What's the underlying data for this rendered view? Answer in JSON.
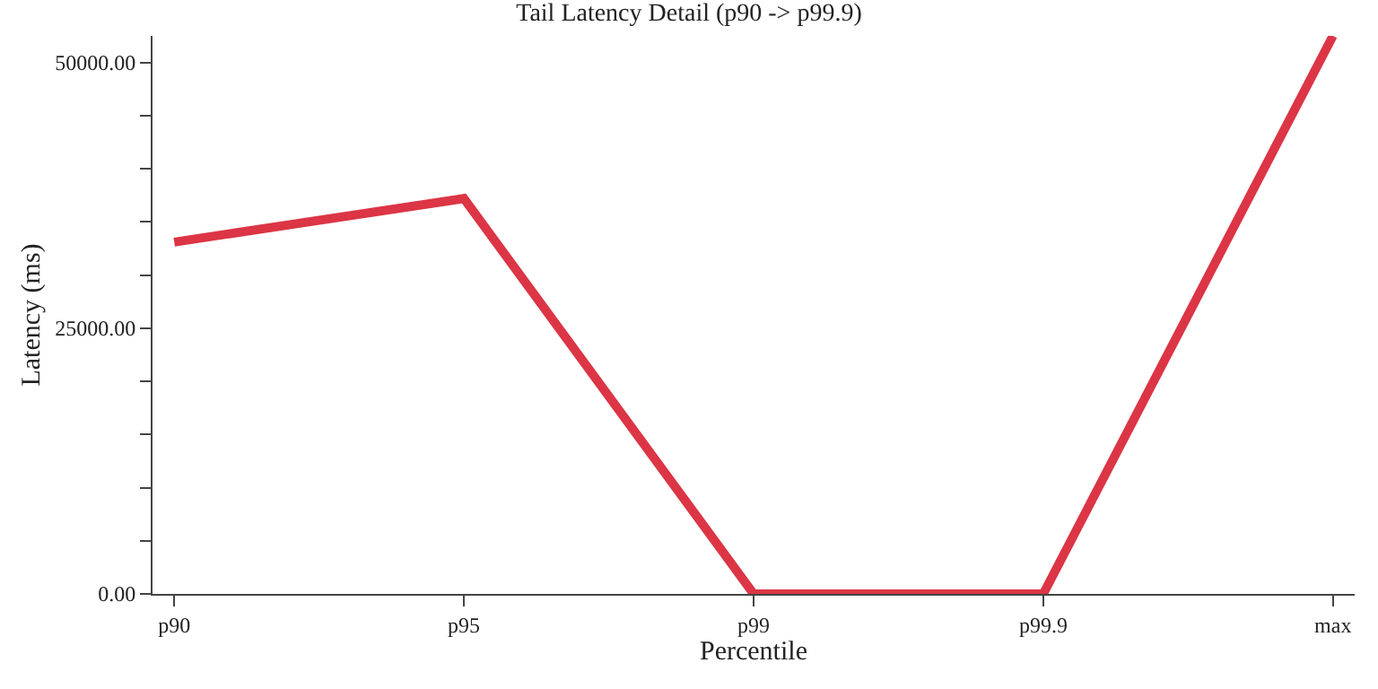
{
  "chart_data": {
    "type": "line",
    "title": "Tail Latency Detail (p90 -> p99.9)",
    "xlabel": "Percentile",
    "ylabel": "Latency (ms)",
    "categories": [
      "p90",
      "p95",
      "p99",
      "p99.9",
      "max"
    ],
    "series": [
      {
        "color": "#dc3545",
        "values": [
          33100,
          37200,
          0,
          0,
          52500
        ]
      }
    ],
    "ylim": [
      0,
      52500
    ],
    "yticks": [
      {
        "value": 0,
        "label": "0.00"
      },
      {
        "value": 5000,
        "label": null
      },
      {
        "value": 10000,
        "label": null
      },
      {
        "value": 15000,
        "label": null
      },
      {
        "value": 20000,
        "label": null
      },
      {
        "value": 25000,
        "label": "25000.00"
      },
      {
        "value": 30000,
        "label": null
      },
      {
        "value": 35000,
        "label": null
      },
      {
        "value": 40000,
        "label": null
      },
      {
        "value": 45000,
        "label": null
      },
      {
        "value": 50000,
        "label": "50000.00"
      }
    ],
    "legend": false,
    "marker": "none",
    "line_style": "solid"
  }
}
